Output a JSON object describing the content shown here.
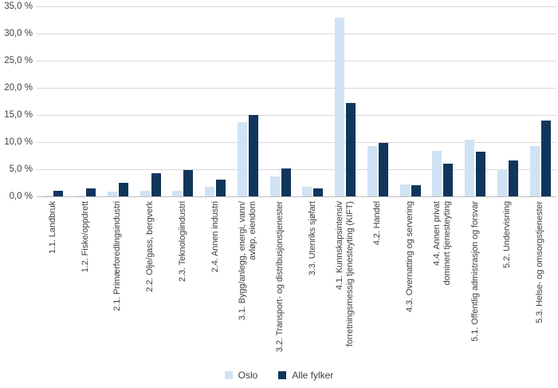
{
  "accent_colors": {
    "oslo_light_blue": "#CFE3F4",
    "alle_fylker_navy": "#11365C",
    "gridline_gray": "#D9D9D9",
    "axis_line_gray": "#BFBFBF",
    "text_gray": "#404040"
  },
  "y_axis": {
    "tick_labels": [
      "0,0 %",
      "5,0 %",
      "10,0 %",
      "15,0 %",
      "20,0 %",
      "25,0 %",
      "30,0 %",
      "35,0 %"
    ],
    "min": 0,
    "max": 35,
    "step": 5
  },
  "legend": {
    "items": [
      {
        "label": "Oslo",
        "color": "#CFE3F4"
      },
      {
        "label": "Alle fylker",
        "color": "#11365C"
      }
    ]
  },
  "chart_data": {
    "type": "bar",
    "title": "",
    "xlabel": "",
    "ylabel": "",
    "ylim": [
      0,
      35
    ],
    "grid": true,
    "legend_position": "bottom-center",
    "value_format": "percent, comma decimal",
    "categories": [
      [
        "1.1. Landbruk"
      ],
      [
        "1.2. Fiske/oppdrett"
      ],
      [
        "2.1. Primærforedlingsindustri"
      ],
      [
        "2.2. Olje/gass, bergverk"
      ],
      [
        "2.3. Teknologiindustri"
      ],
      [
        "2.4. Annen industri"
      ],
      [
        "3.1. Bygg/anlegg, energi, vann/",
        "avløp, eiendom"
      ],
      [
        "3.2. Transport- og distribusjonstjenester"
      ],
      [
        "3.3. Utenriks sjøfart"
      ],
      [
        "4.1. Kunnskapsintensiv",
        "forretningsmessig tjenesteyting (KIFT)"
      ],
      [
        "4.2. Handel"
      ],
      [
        "4.3. Overnatting og servering"
      ],
      [
        "4.4. Annen privat",
        "dominert tjenesteyting"
      ],
      [
        "5.1. Offentlig admistrasjon og forsvar"
      ],
      [
        "5.2. Undervisning"
      ],
      [
        "5.3. Helse- og omsorgstjenester"
      ]
    ],
    "series": [
      {
        "name": "Oslo",
        "color": "#CFE3F4",
        "values": [
          0.1,
          0.1,
          0.9,
          1.0,
          1.0,
          1.8,
          13.7,
          3.7,
          1.7,
          33.0,
          9.3,
          2.2,
          8.4,
          10.5,
          5.0,
          9.2
        ]
      },
      {
        "name": "Alle fylker",
        "color": "#11365C",
        "values": [
          1.1,
          1.5,
          2.5,
          4.2,
          4.8,
          3.1,
          15.0,
          5.1,
          1.4,
          17.2,
          9.8,
          2.0,
          6.1,
          8.3,
          6.6,
          14.0
        ]
      }
    ]
  }
}
